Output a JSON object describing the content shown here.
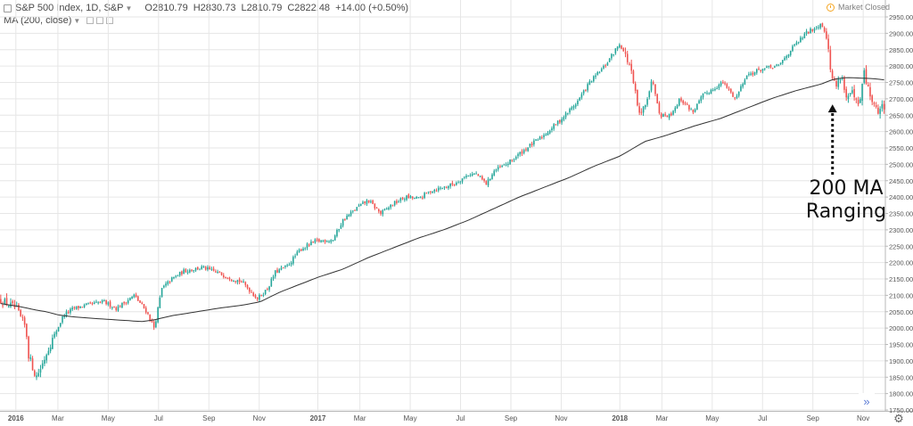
{
  "header": {
    "symbol": "S&P 500 Index, 1D, S&P",
    "ohlc": {
      "open": "O2810.79",
      "high": "H2830.73",
      "low": "L2810.79",
      "close": "C2822.48"
    },
    "change": "+14.00 (+0.50%)",
    "market_status": "Market Closed",
    "indicator": "MA (200, close)"
  },
  "annotation": {
    "line1": "200 MA",
    "line2": "Ranging"
  },
  "icons": {
    "symbol": "chart-symbol-icon",
    "status": "clock-icon",
    "scroll": "double-chevron-right-icon",
    "settings": "gear-icon"
  },
  "colors": {
    "up": "#26a69a",
    "down": "#ef5350",
    "ma": "#333333",
    "grid": "#e6e6e6",
    "text": "#4a4a4a"
  },
  "chart_data": {
    "type": "candlestick",
    "title": "S&P 500 Index, 1D, S&P",
    "ylim": [
      1750,
      2950
    ],
    "y_ticks": [
      "2950.00",
      "2900.00",
      "2850.00",
      "2800.00",
      "2750.00",
      "2700.00",
      "2650.00",
      "2600.00",
      "2550.00",
      "2500.00",
      "2450.00",
      "2400.00",
      "2350.00",
      "2300.00",
      "2250.00",
      "2200.00",
      "2150.00",
      "2100.00",
      "2050.00",
      "2000.00",
      "1950.00",
      "1900.00",
      "1850.00",
      "1800.00",
      "1750.00"
    ],
    "x_labels": [
      {
        "label": "2016",
        "t": 0.0
      },
      {
        "label": "Mar",
        "t": 1.67
      },
      {
        "label": "May",
        "t": 3.67
      },
      {
        "label": "Jul",
        "t": 5.67
      },
      {
        "label": "Sep",
        "t": 7.67
      },
      {
        "label": "Nov",
        "t": 9.67
      },
      {
        "label": "2017",
        "t": 12.0
      },
      {
        "label": "Mar",
        "t": 13.67
      },
      {
        "label": "May",
        "t": 15.67
      },
      {
        "label": "Jul",
        "t": 17.67
      },
      {
        "label": "Sep",
        "t": 19.67
      },
      {
        "label": "Nov",
        "t": 21.67
      },
      {
        "label": "2018",
        "t": 24.0
      },
      {
        "label": "Mar",
        "t": 25.67
      },
      {
        "label": "May",
        "t": 27.67
      },
      {
        "label": "Jul",
        "t": 29.67
      },
      {
        "label": "Sep",
        "t": 31.67
      },
      {
        "label": "Nov",
        "t": 33.67
      }
    ],
    "x_range_months": [
      -0.63,
      34.55
    ],
    "price_path_t": [
      -0.6,
      0.0,
      0.4,
      0.5,
      0.8,
      1.0,
      1.3,
      1.6,
      1.9,
      2.3,
      2.8,
      3.5,
      4.0,
      4.7,
      5.2,
      5.5,
      5.8,
      6.2,
      6.7,
      7.4,
      8.0,
      8.3,
      9.0,
      9.6,
      10.0,
      10.3,
      10.8,
      11.3,
      11.9,
      12.6,
      13.0,
      13.6,
      14.0,
      14.5,
      15.0,
      15.5,
      16.0,
      16.5,
      17.0,
      17.4,
      18.0,
      18.3,
      18.7,
      19.0,
      19.5,
      20.3,
      21.0,
      21.7,
      22.3,
      22.8,
      23.4,
      24.0,
      24.4,
      24.8,
      25.3,
      25.6,
      26.0,
      26.4,
      26.9,
      27.3,
      27.7,
      28.1,
      28.6,
      29.0,
      29.6,
      30.3,
      30.8,
      31.4,
      31.8,
      32.0,
      32.2,
      32.4,
      32.6,
      32.8,
      33.0,
      33.2,
      33.5,
      33.7,
      33.9,
      34.2,
      34.5
    ],
    "price_path_v": [
      2085,
      2060,
      2000,
      1920,
      1850,
      1880,
      1940,
      1990,
      2040,
      2060,
      2070,
      2080,
      2060,
      2100,
      2050,
      2000,
      2120,
      2150,
      2175,
      2185,
      2170,
      2160,
      2140,
      2090,
      2120,
      2170,
      2190,
      2240,
      2265,
      2270,
      2330,
      2370,
      2390,
      2350,
      2380,
      2400,
      2395,
      2420,
      2430,
      2440,
      2470,
      2470,
      2440,
      2480,
      2500,
      2550,
      2590,
      2640,
      2690,
      2750,
      2800,
      2870,
      2800,
      2640,
      2760,
      2650,
      2650,
      2700,
      2660,
      2710,
      2730,
      2750,
      2700,
      2770,
      2790,
      2800,
      2850,
      2900,
      2920,
      2930,
      2900,
      2770,
      2740,
      2780,
      2700,
      2720,
      2670,
      2780,
      2720,
      2660,
      2680
    ],
    "ma_path_t": [
      -0.6,
      0.2,
      0.8,
      1.2,
      1.7,
      2.2,
      3.0,
      4.0,
      5.0,
      5.5,
      6.2,
      6.8,
      8.0,
      9.0,
      9.7,
      10.5,
      12.0,
      13.0,
      14.0,
      15.0,
      16.0,
      17.0,
      18.0,
      19.0,
      20.0,
      21.0,
      22.0,
      23.0,
      24.0,
      25.0,
      25.7,
      27.0,
      28.0,
      29.0,
      30.0,
      31.0,
      32.0,
      32.5,
      33.0,
      34.0,
      34.5
    ],
    "ma_path_v": [
      2075,
      2065,
      2055,
      2050,
      2040,
      2035,
      2030,
      2025,
      2020,
      2025,
      2038,
      2045,
      2060,
      2070,
      2080,
      2110,
      2155,
      2180,
      2215,
      2245,
      2275,
      2300,
      2330,
      2365,
      2400,
      2430,
      2460,
      2495,
      2525,
      2570,
      2585,
      2618,
      2640,
      2670,
      2700,
      2725,
      2745,
      2760,
      2765,
      2762,
      2758
    ],
    "annotation": {
      "text": "200 MA Ranging",
      "target_t": 32.45,
      "target_v": 2683
    }
  }
}
